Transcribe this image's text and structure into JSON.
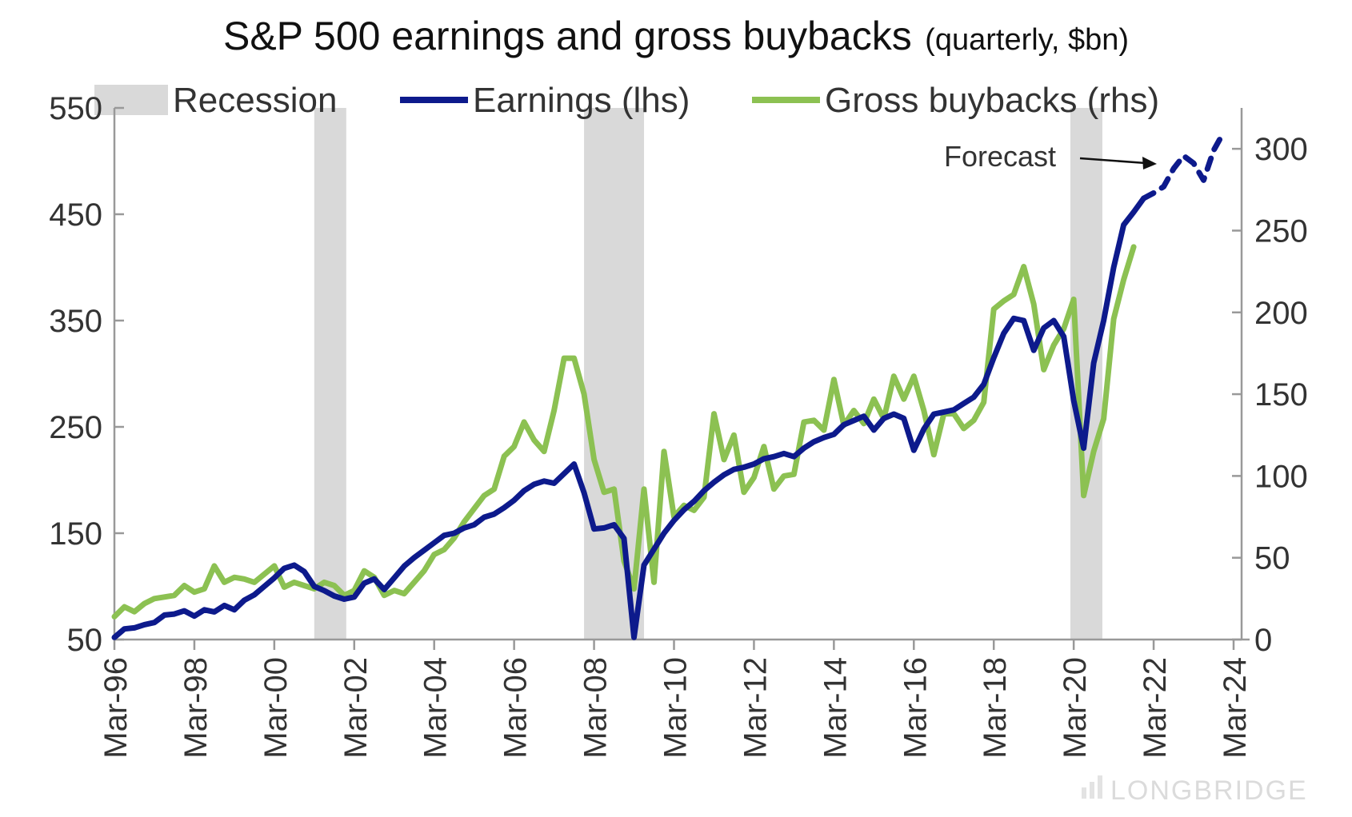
{
  "chart_data": {
    "type": "line",
    "title": "S&P 500 earnings and gross buybacks",
    "subtitle": "(quarterly, $bn)",
    "legend": [
      {
        "name": "Recession",
        "color": "#d9d9d9"
      },
      {
        "name": "Earnings (lhs)",
        "color": "#0d1a8c"
      },
      {
        "name": "Gross buybacks (rhs)",
        "color": "#8cc152"
      }
    ],
    "legend_position": "top",
    "x_range": [
      "1996-03",
      "2024-03"
    ],
    "x_ticks": [
      "Mar-96",
      "Mar-98",
      "Mar-00",
      "Mar-02",
      "Mar-04",
      "Mar-06",
      "Mar-08",
      "Mar-10",
      "Mar-12",
      "Mar-14",
      "Mar-16",
      "Mar-18",
      "Mar-20",
      "Mar-22",
      "Mar-24"
    ],
    "ylim_left": [
      50,
      550
    ],
    "yticks_left": [
      "50",
      "150",
      "250",
      "350",
      "450",
      "550"
    ],
    "ylim_right": [
      0,
      325
    ],
    "yticks_right": [
      "0",
      "50",
      "100",
      "150",
      "200",
      "250",
      "300"
    ],
    "grid": false,
    "recessions": [
      {
        "start": "2001-03",
        "end": "2001-11"
      },
      {
        "start": "2007-12",
        "end": "2009-06"
      },
      {
        "start": "2020-02",
        "end": "2020-04"
      }
    ],
    "series": [
      {
        "name": "Earnings (lhs)",
        "axis": "left",
        "points": [
          [
            "1996-03",
            52
          ],
          [
            "1996-06",
            60
          ],
          [
            "1996-09",
            61
          ],
          [
            "1996-12",
            64
          ],
          [
            "1997-03",
            66
          ],
          [
            "1997-06",
            73
          ],
          [
            "1997-09",
            74
          ],
          [
            "1997-12",
            77
          ],
          [
            "1998-03",
            72
          ],
          [
            "1998-06",
            78
          ],
          [
            "1998-09",
            76
          ],
          [
            "1998-12",
            82
          ],
          [
            "1999-03",
            78
          ],
          [
            "1999-06",
            87
          ],
          [
            "1999-09",
            92
          ],
          [
            "1999-12",
            100
          ],
          [
            "2000-03",
            108
          ],
          [
            "2000-06",
            117
          ],
          [
            "2000-09",
            120
          ],
          [
            "2000-12",
            114
          ],
          [
            "2001-03",
            100
          ],
          [
            "2001-06",
            96
          ],
          [
            "2001-09",
            91
          ],
          [
            "2001-12",
            88
          ],
          [
            "2002-03",
            90
          ],
          [
            "2002-06",
            103
          ],
          [
            "2002-09",
            107
          ],
          [
            "2002-12",
            97
          ],
          [
            "2003-03",
            108
          ],
          [
            "2003-06",
            119
          ],
          [
            "2003-09",
            127
          ],
          [
            "2003-12",
            134
          ],
          [
            "2004-03",
            141
          ],
          [
            "2004-06",
            148
          ],
          [
            "2004-09",
            150
          ],
          [
            "2004-12",
            155
          ],
          [
            "2005-03",
            158
          ],
          [
            "2005-06",
            165
          ],
          [
            "2005-09",
            168
          ],
          [
            "2005-12",
            174
          ],
          [
            "2006-03",
            181
          ],
          [
            "2006-06",
            190
          ],
          [
            "2006-09",
            196
          ],
          [
            "2006-12",
            199
          ],
          [
            "2007-03",
            197
          ],
          [
            "2007-06",
            206
          ],
          [
            "2007-09",
            215
          ],
          [
            "2007-12",
            188
          ],
          [
            "2008-03",
            154
          ],
          [
            "2008-06",
            155
          ],
          [
            "2008-09",
            158
          ],
          [
            "2008-12",
            145
          ],
          [
            "2009-03",
            52
          ],
          [
            "2009-06",
            120
          ],
          [
            "2009-09",
            135
          ],
          [
            "2009-12",
            150
          ],
          [
            "2010-03",
            162
          ],
          [
            "2010-06",
            172
          ],
          [
            "2010-09",
            180
          ],
          [
            "2010-12",
            190
          ],
          [
            "2011-03",
            198
          ],
          [
            "2011-06",
            205
          ],
          [
            "2011-09",
            210
          ],
          [
            "2011-12",
            212
          ],
          [
            "2012-03",
            215
          ],
          [
            "2012-06",
            220
          ],
          [
            "2012-09",
            222
          ],
          [
            "2012-12",
            225
          ],
          [
            "2013-03",
            222
          ],
          [
            "2013-06",
            230
          ],
          [
            "2013-09",
            236
          ],
          [
            "2013-12",
            240
          ],
          [
            "2014-03",
            243
          ],
          [
            "2014-06",
            252
          ],
          [
            "2014-09",
            256
          ],
          [
            "2014-12",
            260
          ],
          [
            "2015-03",
            247
          ],
          [
            "2015-06",
            258
          ],
          [
            "2015-09",
            262
          ],
          [
            "2015-12",
            258
          ],
          [
            "2016-03",
            228
          ],
          [
            "2016-06",
            248
          ],
          [
            "2016-09",
            262
          ],
          [
            "2016-12",
            264
          ],
          [
            "2017-03",
            266
          ],
          [
            "2017-06",
            272
          ],
          [
            "2017-09",
            278
          ],
          [
            "2017-12",
            290
          ],
          [
            "2018-03",
            315
          ],
          [
            "2018-06",
            338
          ],
          [
            "2018-09",
            352
          ],
          [
            "2018-12",
            350
          ],
          [
            "2019-03",
            322
          ],
          [
            "2019-06",
            343
          ],
          [
            "2019-09",
            350
          ],
          [
            "2019-12",
            335
          ],
          [
            "2020-03",
            275
          ],
          [
            "2020-06",
            230
          ],
          [
            "2020-09",
            310
          ],
          [
            "2020-12",
            350
          ],
          [
            "2021-03",
            400
          ],
          [
            "2021-06",
            440
          ],
          [
            "2021-09",
            452
          ],
          [
            "2021-12",
            465
          ]
        ]
      },
      {
        "name": "Earnings forecast",
        "axis": "left",
        "dashed": true,
        "points": [
          [
            "2021-12",
            465
          ],
          [
            "2022-03",
            470
          ],
          [
            "2022-06",
            476
          ],
          [
            "2022-09",
            493
          ],
          [
            "2022-12",
            505
          ],
          [
            "2023-03",
            498
          ],
          [
            "2023-06",
            482
          ],
          [
            "2023-09",
            510
          ],
          [
            "2023-12",
            527
          ]
        ]
      },
      {
        "name": "Gross buybacks (rhs)",
        "axis": "right",
        "points": [
          [
            "1996-03",
            14
          ],
          [
            "1996-06",
            20
          ],
          [
            "1996-09",
            17
          ],
          [
            "1996-12",
            22
          ],
          [
            "1997-03",
            25
          ],
          [
            "1997-06",
            26
          ],
          [
            "1997-09",
            27
          ],
          [
            "1997-12",
            33
          ],
          [
            "1998-03",
            29
          ],
          [
            "1998-06",
            31
          ],
          [
            "1998-09",
            45
          ],
          [
            "1998-12",
            35
          ],
          [
            "1999-03",
            38
          ],
          [
            "1999-06",
            37
          ],
          [
            "1999-09",
            35
          ],
          [
            "1999-12",
            40
          ],
          [
            "2000-03",
            45
          ],
          [
            "2000-06",
            32
          ],
          [
            "2000-09",
            35
          ],
          [
            "2000-12",
            33
          ],
          [
            "2001-03",
            31
          ],
          [
            "2001-06",
            35
          ],
          [
            "2001-09",
            33
          ],
          [
            "2001-12",
            27
          ],
          [
            "2002-03",
            30
          ],
          [
            "2002-06",
            42
          ],
          [
            "2002-09",
            38
          ],
          [
            "2002-12",
            27
          ],
          [
            "2003-03",
            30
          ],
          [
            "2003-06",
            28
          ],
          [
            "2003-09",
            35
          ],
          [
            "2003-12",
            42
          ],
          [
            "2004-03",
            52
          ],
          [
            "2004-06",
            55
          ],
          [
            "2004-09",
            62
          ],
          [
            "2004-12",
            72
          ],
          [
            "2005-03",
            80
          ],
          [
            "2005-06",
            88
          ],
          [
            "2005-09",
            92
          ],
          [
            "2005-12",
            112
          ],
          [
            "2006-03",
            118
          ],
          [
            "2006-06",
            133
          ],
          [
            "2006-09",
            122
          ],
          [
            "2006-12",
            115
          ],
          [
            "2007-03",
            140
          ],
          [
            "2007-06",
            172
          ],
          [
            "2007-09",
            172
          ],
          [
            "2007-12",
            150
          ],
          [
            "2008-03",
            110
          ],
          [
            "2008-06",
            90
          ],
          [
            "2008-09",
            92
          ],
          [
            "2008-12",
            48
          ],
          [
            "2009-03",
            31
          ],
          [
            "2009-06",
            92
          ],
          [
            "2009-09",
            35
          ],
          [
            "2009-12",
            115
          ],
          [
            "2010-03",
            75
          ],
          [
            "2010-06",
            82
          ],
          [
            "2010-09",
            79
          ],
          [
            "2010-12",
            87
          ],
          [
            "2011-03",
            138
          ],
          [
            "2011-06",
            110
          ],
          [
            "2011-09",
            125
          ],
          [
            "2011-12",
            90
          ],
          [
            "2012-03",
            99
          ],
          [
            "2012-06",
            118
          ],
          [
            "2012-09",
            92
          ],
          [
            "2012-12",
            100
          ],
          [
            "2013-03",
            101
          ],
          [
            "2013-06",
            133
          ],
          [
            "2013-09",
            134
          ],
          [
            "2013-12",
            128
          ],
          [
            "2014-03",
            159
          ],
          [
            "2014-06",
            131
          ],
          [
            "2014-09",
            140
          ],
          [
            "2014-12",
            132
          ],
          [
            "2015-03",
            147
          ],
          [
            "2015-06",
            135
          ],
          [
            "2015-09",
            161
          ],
          [
            "2015-12",
            147
          ],
          [
            "2016-03",
            161
          ],
          [
            "2016-06",
            140
          ],
          [
            "2016-09",
            113
          ],
          [
            "2016-12",
            138
          ],
          [
            "2017-03",
            138
          ],
          [
            "2017-06",
            129
          ],
          [
            "2017-09",
            134
          ],
          [
            "2017-12",
            145
          ],
          [
            "2018-03",
            202
          ],
          [
            "2018-06",
            207
          ],
          [
            "2018-09",
            211
          ],
          [
            "2018-12",
            228
          ],
          [
            "2019-03",
            205
          ],
          [
            "2019-06",
            165
          ],
          [
            "2019-09",
            180
          ],
          [
            "2019-12",
            190
          ],
          [
            "2020-03",
            208
          ],
          [
            "2020-06",
            88
          ],
          [
            "2020-09",
            115
          ],
          [
            "2020-12",
            135
          ],
          [
            "2021-03",
            196
          ],
          [
            "2021-06",
            220
          ],
          [
            "2021-09",
            240
          ]
        ]
      }
    ],
    "annotations": [
      {
        "text": "Forecast"
      }
    ]
  },
  "watermark": "LONGBRIDGE"
}
